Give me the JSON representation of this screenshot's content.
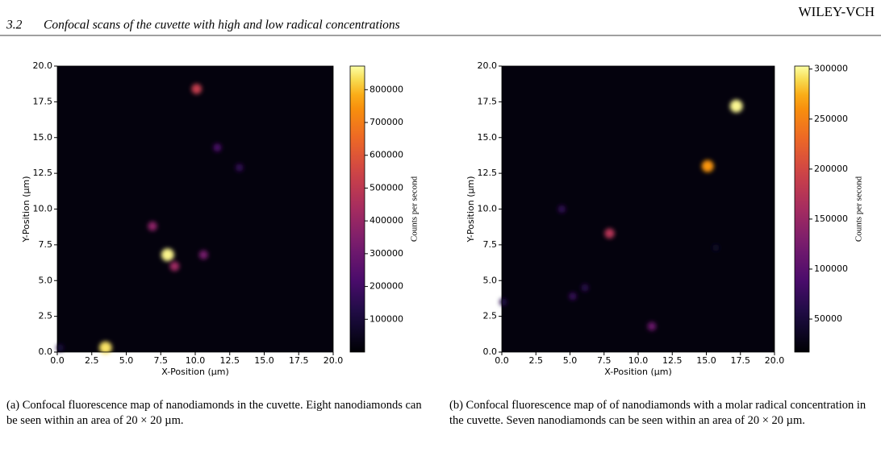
{
  "header": {
    "section": "3.2",
    "title": "Confocal scans of the cuvette with high and low radical concentrations",
    "publisher": "WILEY-VCH"
  },
  "chart_data": [
    {
      "type": "heatmap",
      "xlabel": "X-Position (μm)",
      "ylabel": "Y-Position (μm)",
      "colorbar_label": "Counts per second",
      "xlim": [
        0,
        20
      ],
      "ylim": [
        0,
        20
      ],
      "xticks": [
        {
          "value": 0,
          "label": "0.0"
        },
        {
          "value": 2.5,
          "label": "2.5"
        },
        {
          "value": 5,
          "label": "5.0"
        },
        {
          "value": 7.5,
          "label": "7.5"
        },
        {
          "value": 10,
          "label": "10.0"
        },
        {
          "value": 12.5,
          "label": "12.5"
        },
        {
          "value": 15,
          "label": "15.0"
        },
        {
          "value": 17.5,
          "label": "17.5"
        },
        {
          "value": 20,
          "label": "20.0"
        }
      ],
      "yticks": [
        {
          "value": 0,
          "label": "0.0"
        },
        {
          "value": 2.5,
          "label": "2.5"
        },
        {
          "value": 5,
          "label": "5.0"
        },
        {
          "value": 7.5,
          "label": "7.5"
        },
        {
          "value": 10,
          "label": "10.0"
        },
        {
          "value": 12.5,
          "label": "12.5"
        },
        {
          "value": 15,
          "label": "15.0"
        },
        {
          "value": 17.5,
          "label": "17.5"
        },
        {
          "value": 20,
          "label": "20.0"
        }
      ],
      "clim": [
        0,
        872000
      ],
      "cticks": [
        100000,
        200000,
        300000,
        400000,
        500000,
        600000,
        700000,
        800000
      ],
      "colormap": "inferno",
      "x": [
        10.1,
        11.6,
        13.2,
        6.9,
        8.0,
        8.5,
        10.6,
        3.5,
        0.2
      ],
      "y": [
        18.4,
        14.3,
        12.9,
        8.8,
        6.8,
        6.0,
        6.8,
        0.3,
        0.3
      ],
      "values": [
        520000,
        220000,
        170000,
        380000,
        860000,
        420000,
        330000,
        840000,
        110000
      ]
    },
    {
      "type": "heatmap",
      "xlabel": "X-Position (μm)",
      "ylabel": "Y-Position (μm)",
      "colorbar_label": "Counts per second",
      "xlim": [
        0,
        20
      ],
      "ylim": [
        0,
        20
      ],
      "xticks": [
        {
          "value": 0,
          "label": "0.0"
        },
        {
          "value": 2.5,
          "label": "2.5"
        },
        {
          "value": 5,
          "label": "5.0"
        },
        {
          "value": 7.5,
          "label": "7.5"
        },
        {
          "value": 10,
          "label": "10.0"
        },
        {
          "value": 12.5,
          "label": "12.5"
        },
        {
          "value": 15,
          "label": "15.0"
        },
        {
          "value": 17.5,
          "label": "17.5"
        },
        {
          "value": 20,
          "label": "20.0"
        }
      ],
      "yticks": [
        {
          "value": 0,
          "label": "0.0"
        },
        {
          "value": 2.5,
          "label": "2.5"
        },
        {
          "value": 5,
          "label": "5.0"
        },
        {
          "value": 7.5,
          "label": "7.5"
        },
        {
          "value": 10,
          "label": "10.0"
        },
        {
          "value": 12.5,
          "label": "12.5"
        },
        {
          "value": 15,
          "label": "15.0"
        },
        {
          "value": 17.5,
          "label": "17.5"
        },
        {
          "value": 20,
          "label": "20.0"
        }
      ],
      "clim": [
        17000,
        303000
      ],
      "cticks": [
        50000,
        100000,
        150000,
        200000,
        250000,
        300000
      ],
      "colormap": "inferno",
      "x": [
        17.2,
        15.1,
        7.9,
        4.4,
        5.2,
        6.1,
        11.0,
        0.1,
        15.7
      ],
      "y": [
        17.2,
        13.0,
        8.3,
        10.0,
        3.9,
        4.5,
        1.8,
        3.5,
        7.3
      ],
      "values": [
        300000,
        265000,
        175000,
        70000,
        75000,
        65000,
        115000,
        60000,
        40000
      ]
    }
  ],
  "captions": [
    "(a) Confocal fluorescence map of nanodiamonds in the cuvette. Eight nanodiamonds can be seen within an area of 20 × 20 µm.",
    "(b) Confocal fluorescence map of of nanodiamonds with a molar radical concentration in the cuvette. Seven nanodiamonds can be seen within an area of 20 × 20 µm."
  ]
}
